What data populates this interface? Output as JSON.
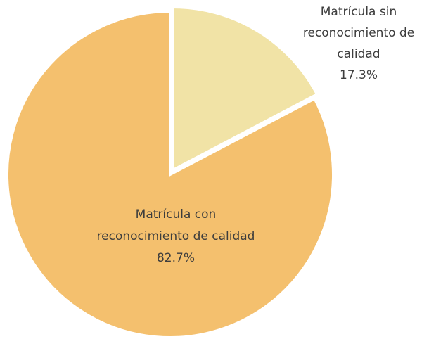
{
  "chart_data": {
    "type": "pie",
    "categories": [
      "Matrícula sin reconocimiento de calidad",
      "Matrícula con reconocimiento de calidad"
    ],
    "values": [
      17.3,
      82.7
    ],
    "value_labels": [
      "17.3%",
      "82.7%"
    ],
    "colors": [
      "#f1e3a6",
      "#f4c06e"
    ]
  }
}
